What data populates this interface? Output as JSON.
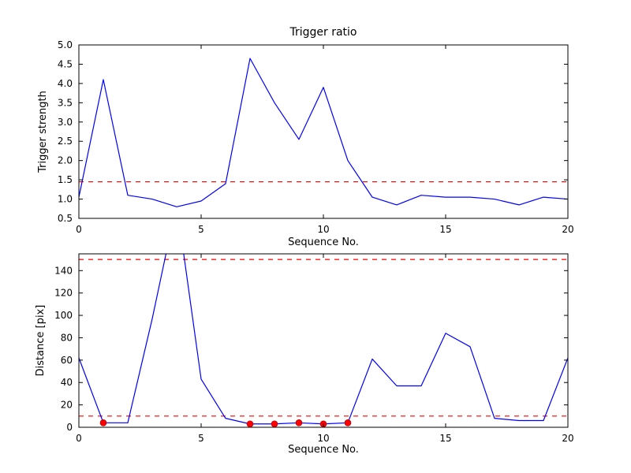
{
  "figure": {
    "background": "#ffffff",
    "line_color": "#0000ff",
    "threshold_color": "#ff0000",
    "marker_color": "#ff0000"
  },
  "chart_data": [
    {
      "type": "line",
      "title": "Trigger ratio",
      "xlabel": "Sequence No.",
      "ylabel": "Trigger strength",
      "xlim": [
        0,
        20
      ],
      "ylim": [
        0.5,
        5.0
      ],
      "xticks": [
        0,
        5,
        10,
        15,
        20
      ],
      "xtick_labels": [
        "0",
        "5",
        "10",
        "15",
        "20"
      ],
      "yticks": [
        0.5,
        1.0,
        1.5,
        2.0,
        2.5,
        3.0,
        3.5,
        4.0,
        4.5,
        5.0
      ],
      "ytick_labels": [
        "0.5",
        "1.0",
        "1.5",
        "2.0",
        "2.5",
        "3.0",
        "3.5",
        "4.0",
        "4.5",
        "5.0"
      ],
      "grid": false,
      "x": [
        0,
        1,
        2,
        3,
        4,
        5,
        6,
        7,
        8,
        9,
        10,
        11,
        12,
        13,
        14,
        15,
        16,
        17,
        18,
        19,
        20
      ],
      "series": [
        {
          "name": "trigger-strength",
          "color": "#0000ff",
          "values": [
            1.05,
            4.1,
            1.1,
            1.0,
            0.8,
            0.95,
            1.4,
            4.65,
            3.5,
            2.55,
            3.9,
            2.0,
            1.05,
            0.85,
            1.1,
            1.05,
            1.05,
            1.0,
            0.85,
            1.05,
            1.0
          ]
        }
      ],
      "thresholds": [
        {
          "y": 1.45,
          "color": "#ff0000",
          "style": "dashed"
        }
      ]
    },
    {
      "type": "line",
      "title": "",
      "xlabel": "Sequence No.",
      "ylabel": "Distance [pix]",
      "xlim": [
        0,
        20
      ],
      "ylim": [
        0,
        155
      ],
      "xticks": [
        0,
        5,
        10,
        15,
        20
      ],
      "xtick_labels": [
        "0",
        "5",
        "10",
        "15",
        "20"
      ],
      "yticks": [
        0,
        20,
        40,
        60,
        80,
        100,
        120,
        140
      ],
      "ytick_labels": [
        "0",
        "20",
        "40",
        "60",
        "80",
        "100",
        "120",
        "140"
      ],
      "grid": false,
      "x": [
        0,
        1,
        2,
        3,
        4,
        5,
        6,
        7,
        8,
        9,
        10,
        11,
        12,
        13,
        14,
        15,
        16,
        17,
        18,
        19,
        20
      ],
      "series": [
        {
          "name": "distance-pix",
          "color": "#0000ff",
          "values": [
            62,
            4,
            4,
            97,
            200,
            43,
            8,
            3,
            3,
            4,
            3,
            4,
            61,
            37,
            37,
            84,
            72,
            8,
            6,
            6,
            62
          ]
        }
      ],
      "thresholds": [
        {
          "y": 150,
          "color": "#ff0000",
          "style": "dashed"
        },
        {
          "y": 10,
          "color": "#ff0000",
          "style": "dashed"
        }
      ],
      "markers": {
        "color": "#ff0000",
        "x": [
          1,
          7,
          8,
          9,
          10,
          11
        ]
      }
    }
  ]
}
